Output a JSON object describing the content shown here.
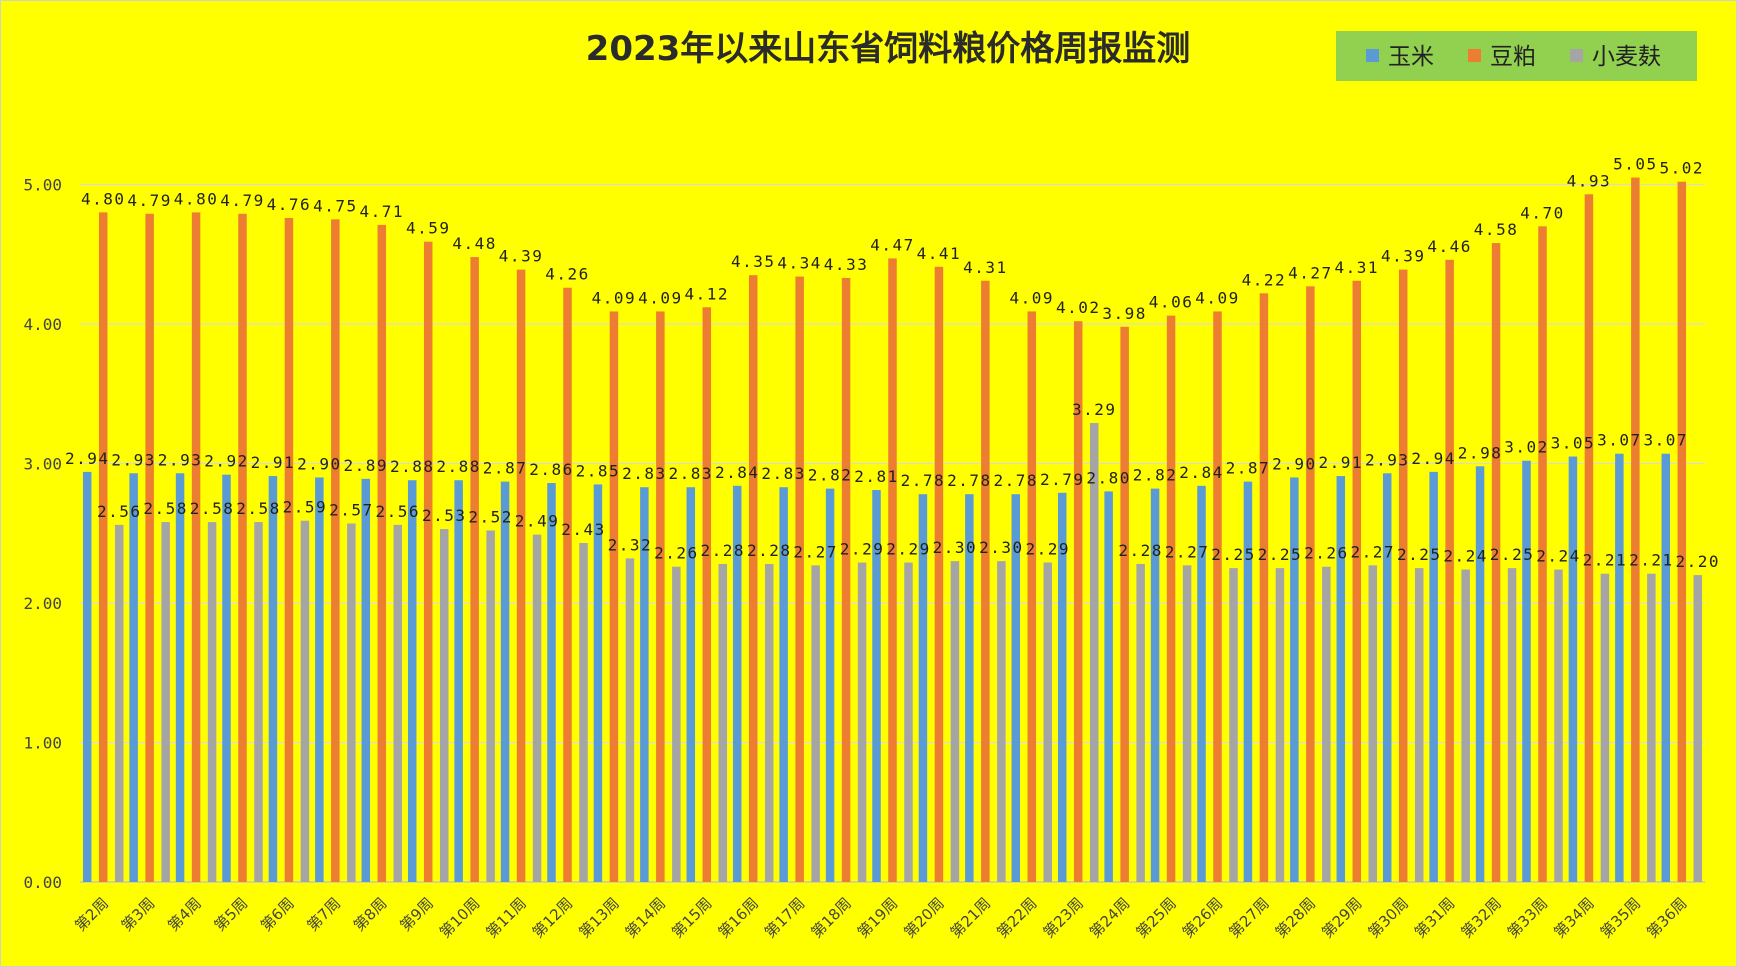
{
  "chart_data": {
    "type": "bar",
    "title": "2023年以来山东省饲料粮价格周报监测",
    "categories": [
      "第2周",
      "第3周",
      "第4周",
      "第5周",
      "第6周",
      "第7周",
      "第8周",
      "第9周",
      "第10周",
      "第11周",
      "第12周",
      "第13周",
      "第14周",
      "第15周",
      "第16周",
      "第17周",
      "第18周",
      "第19周",
      "第20周",
      "第21周",
      "第22周",
      "第23周",
      "第24周",
      "第25周",
      "第26周",
      "第27周",
      "第28周",
      "第29周",
      "第30周",
      "第31周",
      "第32周",
      "第33周",
      "第34周",
      "第35周",
      "第36周"
    ],
    "series": [
      {
        "name": "玉米",
        "color": "#5b9bd5",
        "values": [
          2.94,
          2.93,
          2.93,
          2.92,
          2.91,
          2.9,
          2.89,
          2.88,
          2.88,
          2.87,
          2.86,
          2.85,
          2.83,
          2.83,
          2.84,
          2.83,
          2.82,
          2.81,
          2.78,
          2.78,
          2.78,
          2.79,
          2.8,
          2.82,
          2.84,
          2.87,
          2.9,
          2.91,
          2.93,
          2.94,
          2.98,
          3.02,
          3.05,
          3.07,
          3.07
        ]
      },
      {
        "name": "豆粕",
        "color": "#ed7d31",
        "values": [
          4.8,
          4.79,
          4.8,
          4.79,
          4.76,
          4.75,
          4.71,
          4.59,
          4.48,
          4.39,
          4.26,
          4.09,
          4.09,
          4.12,
          4.35,
          4.34,
          4.33,
          4.47,
          4.41,
          4.31,
          4.09,
          4.02,
          3.98,
          4.06,
          4.09,
          4.22,
          4.27,
          4.31,
          4.39,
          4.46,
          4.58,
          4.7,
          4.93,
          5.05,
          5.02
        ]
      },
      {
        "name": "小麦麸",
        "color": "#a5a5a5",
        "values": [
          2.56,
          2.58,
          2.58,
          2.58,
          2.59,
          2.57,
          2.56,
          2.53,
          2.52,
          2.49,
          2.43,
          2.32,
          2.26,
          2.28,
          2.28,
          2.27,
          2.29,
          2.29,
          2.3,
          2.3,
          2.29,
          3.29,
          2.28,
          2.27,
          2.25,
          2.25,
          2.26,
          2.27,
          2.25,
          2.24,
          2.25,
          2.24,
          2.21,
          2.21,
          2.2
        ]
      }
    ],
    "yticks": [
      "0.00",
      "1.00",
      "2.00",
      "3.00",
      "4.00",
      "5.00"
    ],
    "ylim": [
      0,
      5.7
    ],
    "grid": true,
    "legend_position": "top-right",
    "data_labels": true
  },
  "colors": {
    "background": "#ffff00",
    "legend_background": "#92d050",
    "gridline": "#d9d9d9"
  }
}
